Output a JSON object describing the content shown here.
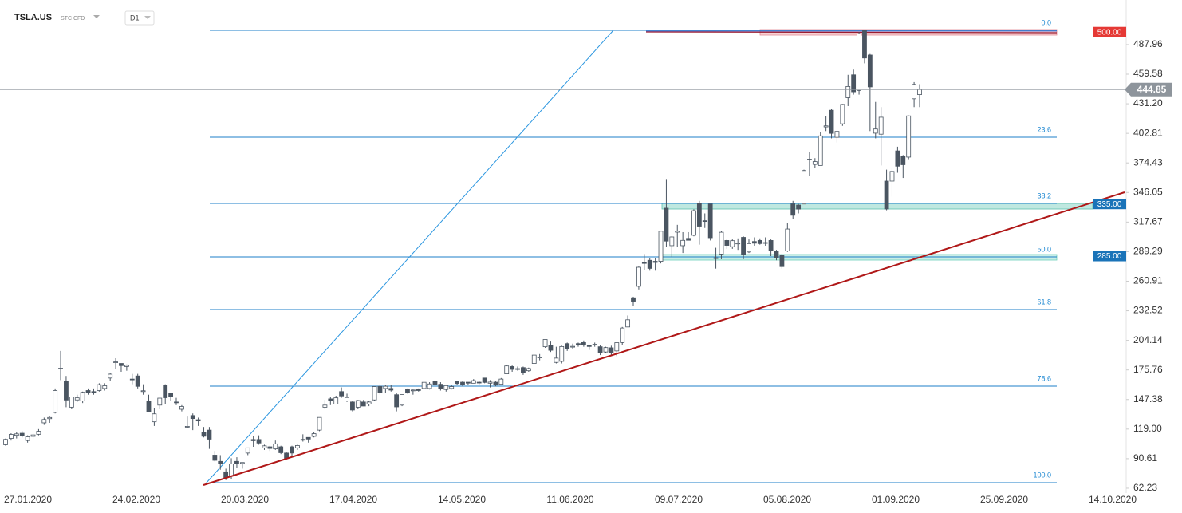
{
  "chart_data": {
    "type": "candlestick",
    "symbol": "TSLA.US",
    "instrument": "STC CFD",
    "interval": "D1",
    "fib_levels": [
      "0.0",
      "23.6",
      "38.2",
      "50.0",
      "61.8",
      "78.6",
      "100.0"
    ],
    "x_labels": [
      "27.01.2020",
      "24.02.2020",
      "20.03.2020",
      "17.04.2020",
      "14.05.2020",
      "11.06.2020",
      "09.07.2020",
      "05.08.2020",
      "01.09.2020",
      "25.09.2020",
      "14.10.2020"
    ],
    "ylim": [
      57.6,
      530.8
    ],
    "yticks": [
      487.96,
      {
        "value": 459.58,
        "label": "459.58"
      },
      {
        "value": 431.2,
        "label": "431.20"
      },
      402.81,
      374.43,
      346.05,
      317.67,
      289.29,
      260.91,
      232.52,
      204.14,
      175.76,
      147.38,
      {
        "value": 119,
        "label": "119.00"
      },
      90.61,
      62.23
    ],
    "bull_color": "#ffffff",
    "bear_color": "#4a5561",
    "price_levels": [
      {
        "value": 500,
        "label": "500.00",
        "color": "#e53935"
      },
      {
        "value": 335,
        "label": "335.00",
        "color": "#1a73b8"
      },
      {
        "value": 285,
        "label": "285.00",
        "color": "#1a73b8"
      }
    ],
    "last_price": {
      "value": 444.85,
      "label": "444.85",
      "color": "#8e959c"
    },
    "candles": [
      [
        104,
        110,
        103,
        109.1
      ],
      [
        110,
        115,
        108,
        113.9
      ],
      [
        113,
        116,
        110,
        114.4
      ],
      [
        115,
        117,
        111,
        113.0
      ],
      [
        108,
        113,
        106,
        111.6
      ],
      [
        112,
        115,
        109,
        113.4
      ],
      [
        114,
        119,
        113,
        116.9
      ],
      [
        125,
        130,
        123,
        128.2
      ],
      [
        129,
        131,
        125,
        130.1
      ],
      [
        135,
        158,
        134,
        156.0
      ],
      [
        177,
        194,
        166,
        177.4
      ],
      [
        165,
        170,
        140,
        146.9
      ],
      [
        140,
        150,
        138,
        149.8
      ],
      [
        147,
        152,
        145,
        149.0
      ],
      [
        146,
        155,
        144,
        154.3
      ],
      [
        156,
        158,
        152,
        154.0
      ],
      [
        155,
        158,
        152,
        153.8
      ],
      [
        156,
        163,
        155,
        161.6
      ],
      [
        158,
        163,
        156,
        160.6
      ],
      [
        168,
        173,
        165,
        171.7
      ],
      [
        183,
        187,
        177,
        183.5
      ],
      [
        182,
        182,
        174,
        179.9
      ],
      [
        179,
        181,
        175,
        180.2
      ],
      [
        167,
        172,
        162,
        166.8
      ],
      [
        170,
        172,
        158,
        160.0
      ],
      [
        155,
        162,
        152,
        155.8
      ],
      [
        146,
        152,
        135,
        135.8
      ],
      [
        126,
        139,
        122,
        133.6
      ],
      [
        142,
        149,
        138,
        148.7
      ],
      [
        161,
        162,
        143,
        149.1
      ],
      [
        153,
        153,
        146,
        149.9
      ],
      [
        145,
        149,
        142,
        144.9
      ],
      [
        138,
        142,
        136,
        140.7
      ],
      [
        121,
        131,
        120,
        121.6
      ],
      [
        132,
        134,
        118,
        129.1
      ],
      [
        128,
        130,
        122,
        126.8
      ],
      [
        116,
        121,
        111,
        112.1
      ],
      [
        118,
        121,
        100,
        109.3
      ],
      [
        94,
        98,
        88,
        89.0
      ],
      [
        88,
        94,
        80,
        86.0
      ],
      [
        78,
        81,
        70,
        72.2
      ],
      [
        74,
        91,
        71,
        85.5
      ],
      [
        88,
        92,
        82,
        85.5
      ],
      [
        86,
        87,
        81,
        86.9
      ],
      [
        96,
        101,
        94,
        101.0
      ],
      [
        109,
        112,
        102,
        107.8
      ],
      [
        109,
        113,
        104,
        105.6
      ],
      [
        101,
        104,
        99,
        102.9
      ],
      [
        102,
        103,
        98,
        100.4
      ],
      [
        100,
        108,
        99,
        104.8
      ],
      [
        102,
        103,
        95,
        96.3
      ],
      [
        96,
        97,
        89,
        90.9
      ],
      [
        102,
        103,
        93,
        96.0
      ],
      [
        101,
        104,
        99,
        103.2
      ],
      [
        109,
        114,
        107,
        109.1
      ],
      [
        111,
        111,
        106,
        109.4
      ],
      [
        112,
        116,
        111,
        114.6
      ],
      [
        118,
        130,
        117,
        130.2
      ],
      [
        140,
        147,
        138,
        142.0
      ],
      [
        148,
        150,
        142,
        146.0
      ],
      [
        143,
        151,
        143,
        149.0
      ],
      [
        155,
        159,
        149,
        150.8
      ],
      [
        146,
        153,
        145,
        149.3
      ],
      [
        145,
        146,
        136,
        137.3
      ],
      [
        140,
        147,
        138,
        146.4
      ],
      [
        145,
        147,
        141,
        141.1
      ],
      [
        143,
        146,
        141,
        145.0
      ],
      [
        147,
        160,
        146,
        159.8
      ],
      [
        160,
        162,
        152,
        153.8
      ],
      [
        158,
        161,
        154,
        160.1
      ],
      [
        158,
        161,
        155,
        156.4
      ],
      [
        152,
        154,
        136,
        140.3
      ],
      [
        142,
        152,
        141,
        152.2
      ],
      [
        157,
        158,
        153,
        153.6
      ],
      [
        156,
        157,
        152,
        156.5
      ],
      [
        157,
        158,
        155,
        156.0
      ],
      [
        158,
        164,
        158,
        163.9
      ],
      [
        158,
        164,
        157,
        162.3
      ],
      [
        165,
        166,
        160,
        161.9
      ],
      [
        162,
        164,
        156,
        158.2
      ],
      [
        157,
        161,
        155,
        160.7
      ],
      [
        158,
        161,
        157,
        159.8
      ],
      [
        165,
        165,
        161,
        162.7
      ],
      [
        164,
        165,
        160,
        161.6
      ],
      [
        164,
        164,
        161,
        163.1
      ],
      [
        163,
        167,
        163,
        165.5
      ],
      [
        164,
        165,
        162,
        163.4
      ],
      [
        168,
        168,
        163,
        163.8
      ],
      [
        163,
        166,
        159,
        164.1
      ],
      [
        164,
        165,
        160,
        161.2
      ],
      [
        162,
        168,
        161,
        167.0
      ],
      [
        172,
        180,
        172,
        179.6
      ],
      [
        179,
        180,
        174,
        176.3
      ],
      [
        177,
        179,
        175,
        176.6
      ],
      [
        178,
        179,
        171,
        172.9
      ],
      [
        175,
        178,
        174,
        177.1
      ],
      [
        182,
        190,
        182,
        190.0
      ],
      [
        188,
        191,
        185,
        188.1
      ],
      [
        198,
        205,
        197,
        205.0
      ],
      [
        199,
        203,
        193,
        194.6
      ],
      [
        183,
        198,
        182,
        187.1
      ],
      [
        184,
        199,
        182,
        198.2
      ],
      [
        201,
        202,
        194,
        196.4
      ],
      [
        198,
        201,
        196,
        198.4
      ],
      [
        201,
        202,
        198,
        200.8
      ],
      [
        202,
        204,
        198,
        200.2
      ],
      [
        199,
        200,
        195,
        198.9
      ],
      [
        200,
        202,
        198,
        200.4
      ],
      [
        198,
        200,
        190,
        192.2
      ],
      [
        193,
        198,
        192,
        197.2
      ],
      [
        197,
        199,
        189,
        192.0
      ],
      [
        194,
        202,
        189,
        201.9
      ],
      [
        202,
        217,
        200,
        216.0
      ],
      [
        217,
        228,
        217,
        223.9
      ],
      [
        245,
        246,
        237,
        241.7
      ],
      [
        256,
        275,
        253,
        274.3
      ],
      [
        279,
        287,
        272,
        278.0
      ],
      [
        281,
        283,
        271,
        273.2
      ],
      [
        280,
        283,
        271,
        278.9
      ],
      [
        280,
        309,
        278,
        308.9
      ],
      [
        331,
        359,
        294,
        299.4
      ],
      [
        295,
        304,
        284,
        303.4
      ],
      [
        308,
        315,
        294,
        309.2
      ],
      [
        295,
        308,
        288,
        300.1
      ],
      [
        302,
        308,
        300,
        300.2
      ],
      [
        305,
        330,
        304,
        328.6
      ],
      [
        336,
        338,
        296,
        313.7
      ],
      [
        319,
        326,
        312,
        318.5
      ],
      [
        335,
        335,
        300,
        302.6
      ],
      [
        283,
        293,
        273,
        283.4
      ],
      [
        287,
        309,
        282,
        307.9
      ],
      [
        300,
        301,
        292,
        295.3
      ],
      [
        294,
        301,
        292,
        299.8
      ],
      [
        297,
        302,
        291,
        297.5
      ],
      [
        303,
        304,
        282,
        286.2
      ],
      [
        289,
        301,
        288,
        297.0
      ],
      [
        299,
        303,
        295,
        297.4
      ],
      [
        300,
        302,
        296,
        297.0
      ],
      [
        298,
        303,
        295,
        297.9
      ],
      [
        300,
        301,
        285,
        290.5
      ],
      [
        290,
        291,
        281,
        283.7
      ],
      [
        286,
        287,
        273,
        274.9
      ],
      [
        290,
        317,
        289,
        311.0
      ],
      [
        335,
        338,
        321,
        324.2
      ],
      [
        334,
        335,
        326,
        330.1
      ],
      [
        335,
        368,
        335,
        367.1
      ],
      [
        378,
        385,
        362,
        377.4
      ],
      [
        373,
        379,
        370,
        375.7
      ],
      [
        372,
        404,
        372,
        400.4
      ],
      [
        409,
        419,
        405,
        410.0
      ],
      [
        425,
        426,
        398,
        402.8
      ],
      [
        399,
        405,
        394,
        404.7
      ],
      [
        412,
        431,
        410,
        430.6
      ],
      [
        437,
        459,
        429,
        447.8
      ],
      [
        459,
        464,
        440,
        442.7
      ],
      [
        444,
        500,
        440,
        498.3
      ],
      [
        502,
        502,
        470,
        475.1
      ],
      [
        478,
        479,
        405,
        447.4
      ],
      [
        403,
        433,
        398,
        407.0
      ],
      [
        402,
        428,
        372,
        418.3
      ],
      [
        357,
        368,
        329,
        330.2
      ],
      [
        357,
        370,
        342,
        366.3
      ],
      [
        386,
        390,
        365,
        371.3
      ],
      [
        381,
        382,
        360,
        372.7
      ],
      [
        380,
        420,
        378,
        419.6
      ],
      [
        436,
        452,
        428,
        449.8
      ],
      [
        440,
        450,
        428,
        444.9
      ]
    ]
  }
}
